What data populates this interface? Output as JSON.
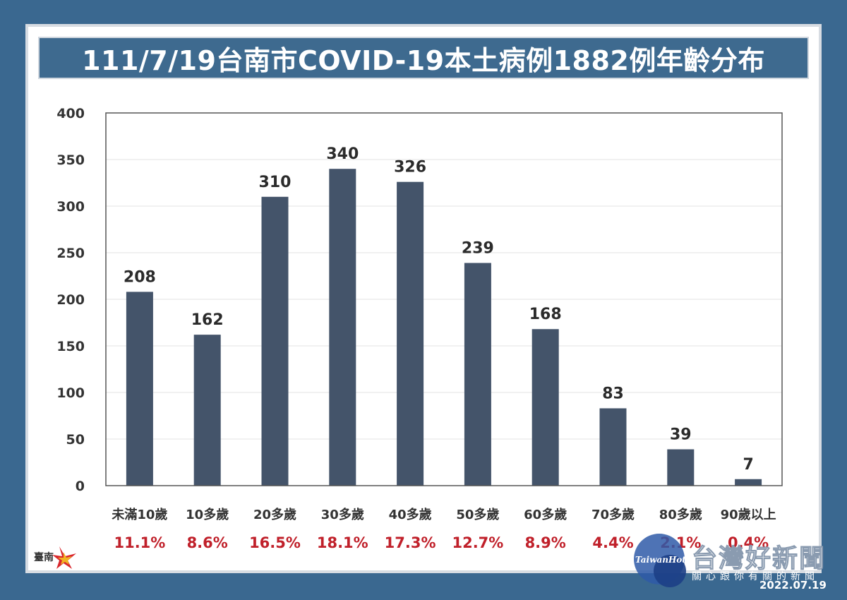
{
  "title": "111/7/19台南市COVID-19本土病例1882例年齡分布",
  "chart_data": {
    "type": "bar",
    "title": "111/7/19台南市COVID-19本土病例1882例年齡分布",
    "xlabel": "",
    "ylabel": "",
    "ylim": [
      0,
      400
    ],
    "yticks": [
      0,
      50,
      100,
      150,
      200,
      250,
      300,
      350,
      400
    ],
    "grid": true,
    "categories": [
      "未滿10歲",
      "10多歲",
      "20多歲",
      "30多歲",
      "40多歲",
      "50多歲",
      "60多歲",
      "70多歲",
      "80多歲",
      "90歲以上"
    ],
    "values": [
      208,
      162,
      310,
      340,
      326,
      239,
      168,
      83,
      39,
      7
    ],
    "percentages": [
      "11.1%",
      "8.6%",
      "16.5%",
      "18.1%",
      "17.3%",
      "12.7%",
      "8.9%",
      "4.4%",
      "2.1%",
      "0.4%"
    ],
    "bar_color": "#44546a",
    "percent_color": "#c0202a"
  },
  "logo_text": "臺南",
  "watermark": {
    "brand": "TaiwanHot",
    "name": "台灣好新聞",
    "slogan": "關心跟你有關的新聞"
  },
  "date": "2022.07.19"
}
